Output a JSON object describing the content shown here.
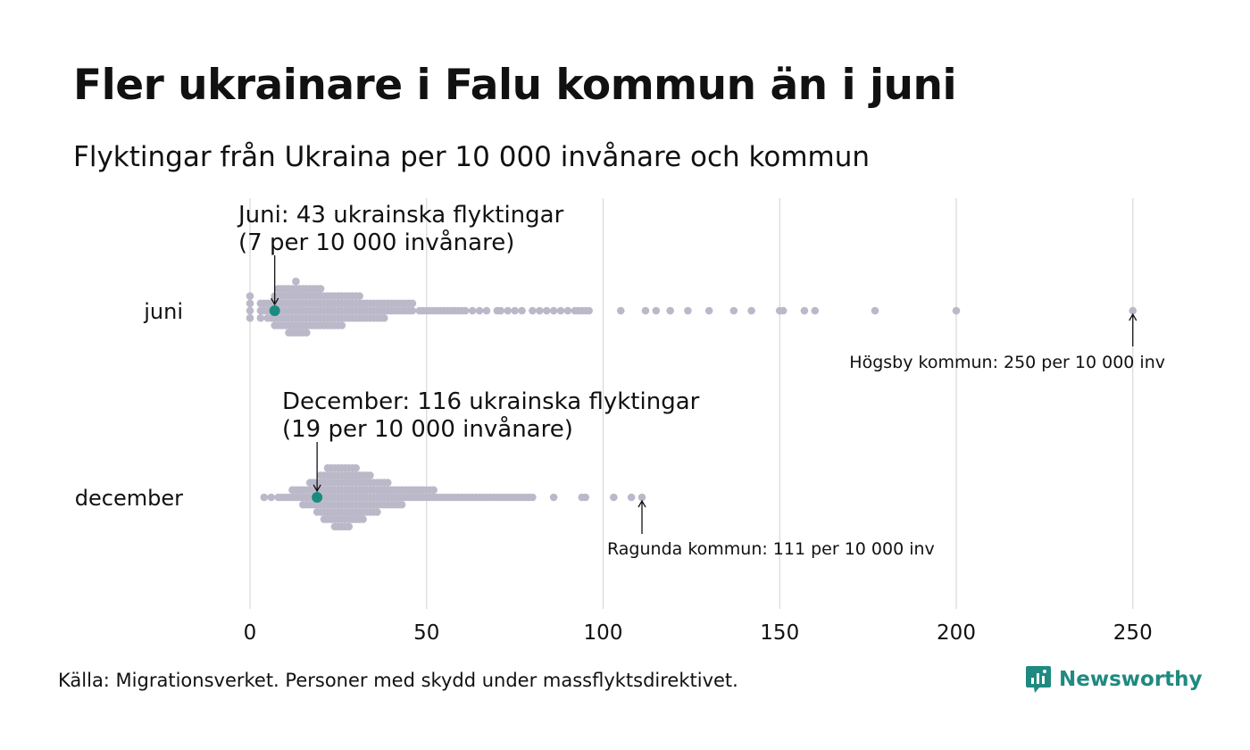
{
  "chart_data": {
    "type": "scatter",
    "subtype": "beeswarm",
    "title": "Fler ukrainare i Falu kommun än i juni",
    "subtitle": "Flyktingar från Ukraina per 10 000 invånare och kommun",
    "categories": [
      "juni",
      "december"
    ],
    "x_ticks": [
      "0",
      "50",
      "100",
      "150",
      "200",
      "250"
    ],
    "xlim": [
      0,
      250
    ],
    "grid": true,
    "colors": {
      "point": "#bbb9c9",
      "highlight": "#1a8c7f",
      "grid": "#d9d9d9",
      "text": "#111111"
    },
    "series": [
      {
        "name": "juni",
        "highlight": {
          "value": 7,
          "label_line1": "Juni:  43 ukrainska flyktingar",
          "label_line2": "(7 per 10 000 invånare)"
        },
        "max": {
          "value": 250,
          "label": "Högsby kommun: 250 per 10 000 inv"
        },
        "values": [
          0,
          0,
          0,
          0,
          3,
          3,
          3,
          4,
          4,
          5,
          5,
          5,
          6,
          6,
          6,
          7,
          7,
          7,
          7,
          7,
          8,
          8,
          8,
          8,
          8,
          8,
          9,
          9,
          9,
          9,
          9,
          9,
          10,
          10,
          10,
          10,
          10,
          10,
          11,
          11,
          11,
          11,
          11,
          11,
          11,
          12,
          12,
          12,
          12,
          12,
          12,
          12,
          13,
          13,
          13,
          13,
          13,
          13,
          13,
          13,
          14,
          14,
          14,
          14,
          14,
          14,
          14,
          15,
          15,
          15,
          15,
          15,
          15,
          15,
          16,
          16,
          16,
          16,
          16,
          16,
          16,
          17,
          17,
          17,
          17,
          17,
          17,
          18,
          18,
          18,
          18,
          18,
          18,
          19,
          19,
          19,
          19,
          19,
          19,
          20,
          20,
          20,
          20,
          20,
          20,
          21,
          21,
          21,
          21,
          21,
          22,
          22,
          22,
          22,
          22,
          23,
          23,
          23,
          23,
          23,
          24,
          24,
          24,
          24,
          24,
          25,
          25,
          25,
          25,
          25,
          26,
          26,
          26,
          26,
          26,
          27,
          27,
          27,
          27,
          28,
          28,
          28,
          28,
          29,
          29,
          29,
          29,
          30,
          30,
          30,
          30,
          31,
          31,
          31,
          31,
          32,
          32,
          32,
          33,
          33,
          33,
          34,
          34,
          34,
          35,
          35,
          35,
          36,
          36,
          36,
          37,
          37,
          37,
          38,
          38,
          38,
          39,
          39,
          40,
          40,
          41,
          41,
          42,
          42,
          43,
          43,
          44,
          44,
          45,
          45,
          46,
          46,
          48,
          49,
          50,
          51,
          52,
          53,
          54,
          55,
          56,
          57,
          58,
          59,
          60,
          61,
          63,
          65,
          67,
          70,
          71,
          73,
          75,
          77,
          80,
          82,
          84,
          86,
          88,
          90,
          92,
          93,
          94,
          95,
          96,
          105,
          112,
          115,
          119,
          124,
          130,
          137,
          142,
          150,
          151,
          157,
          160,
          177,
          200,
          250
        ]
      },
      {
        "name": "december",
        "highlight": {
          "value": 19,
          "label_line1": "December: 116 ukrainska flyktingar",
          "label_line2": "(19 per 10 000 invånare)"
        },
        "max": {
          "value": 111,
          "label": "Ragunda kommun: 111 per 10 000 inv"
        },
        "values": [
          4,
          6,
          8,
          9,
          10,
          11,
          12,
          12,
          13,
          13,
          14,
          14,
          15,
          15,
          15,
          16,
          16,
          16,
          17,
          17,
          17,
          17,
          18,
          18,
          18,
          18,
          19,
          19,
          19,
          19,
          19,
          20,
          20,
          20,
          20,
          20,
          20,
          21,
          21,
          21,
          21,
          21,
          21,
          21,
          22,
          22,
          22,
          22,
          22,
          22,
          22,
          22,
          23,
          23,
          23,
          23,
          23,
          23,
          23,
          23,
          24,
          24,
          24,
          24,
          24,
          24,
          24,
          24,
          24,
          25,
          25,
          25,
          25,
          25,
          25,
          25,
          25,
          25,
          26,
          26,
          26,
          26,
          26,
          26,
          26,
          26,
          26,
          27,
          27,
          27,
          27,
          27,
          27,
          27,
          27,
          27,
          28,
          28,
          28,
          28,
          28,
          28,
          28,
          28,
          28,
          29,
          29,
          29,
          29,
          29,
          29,
          29,
          29,
          30,
          30,
          30,
          30,
          30,
          30,
          30,
          30,
          31,
          31,
          31,
          31,
          31,
          31,
          31,
          32,
          32,
          32,
          32,
          32,
          32,
          32,
          33,
          33,
          33,
          33,
          33,
          33,
          34,
          34,
          34,
          34,
          34,
          34,
          35,
          35,
          35,
          35,
          35,
          36,
          36,
          36,
          36,
          36,
          37,
          37,
          37,
          37,
          38,
          38,
          38,
          38,
          39,
          39,
          39,
          39,
          40,
          40,
          40,
          41,
          41,
          41,
          42,
          42,
          42,
          43,
          43,
          43,
          44,
          44,
          45,
          45,
          46,
          46,
          47,
          47,
          48,
          48,
          49,
          49,
          50,
          50,
          51,
          51,
          52,
          52,
          53,
          54,
          55,
          56,
          57,
          58,
          59,
          60,
          61,
          62,
          63,
          64,
          65,
          66,
          67,
          68,
          69,
          70,
          71,
          72,
          73,
          74,
          75,
          76,
          77,
          78,
          79,
          80,
          86,
          94,
          95,
          103,
          108,
          111
        ]
      }
    ]
  },
  "source_note": "Källa: Migrationsverket. Personer med skydd under massflyktsdirektivet.",
  "brand": {
    "name": "Newsworthy",
    "icon": "newsworthy-logo-icon",
    "color": "#1f8a80"
  }
}
